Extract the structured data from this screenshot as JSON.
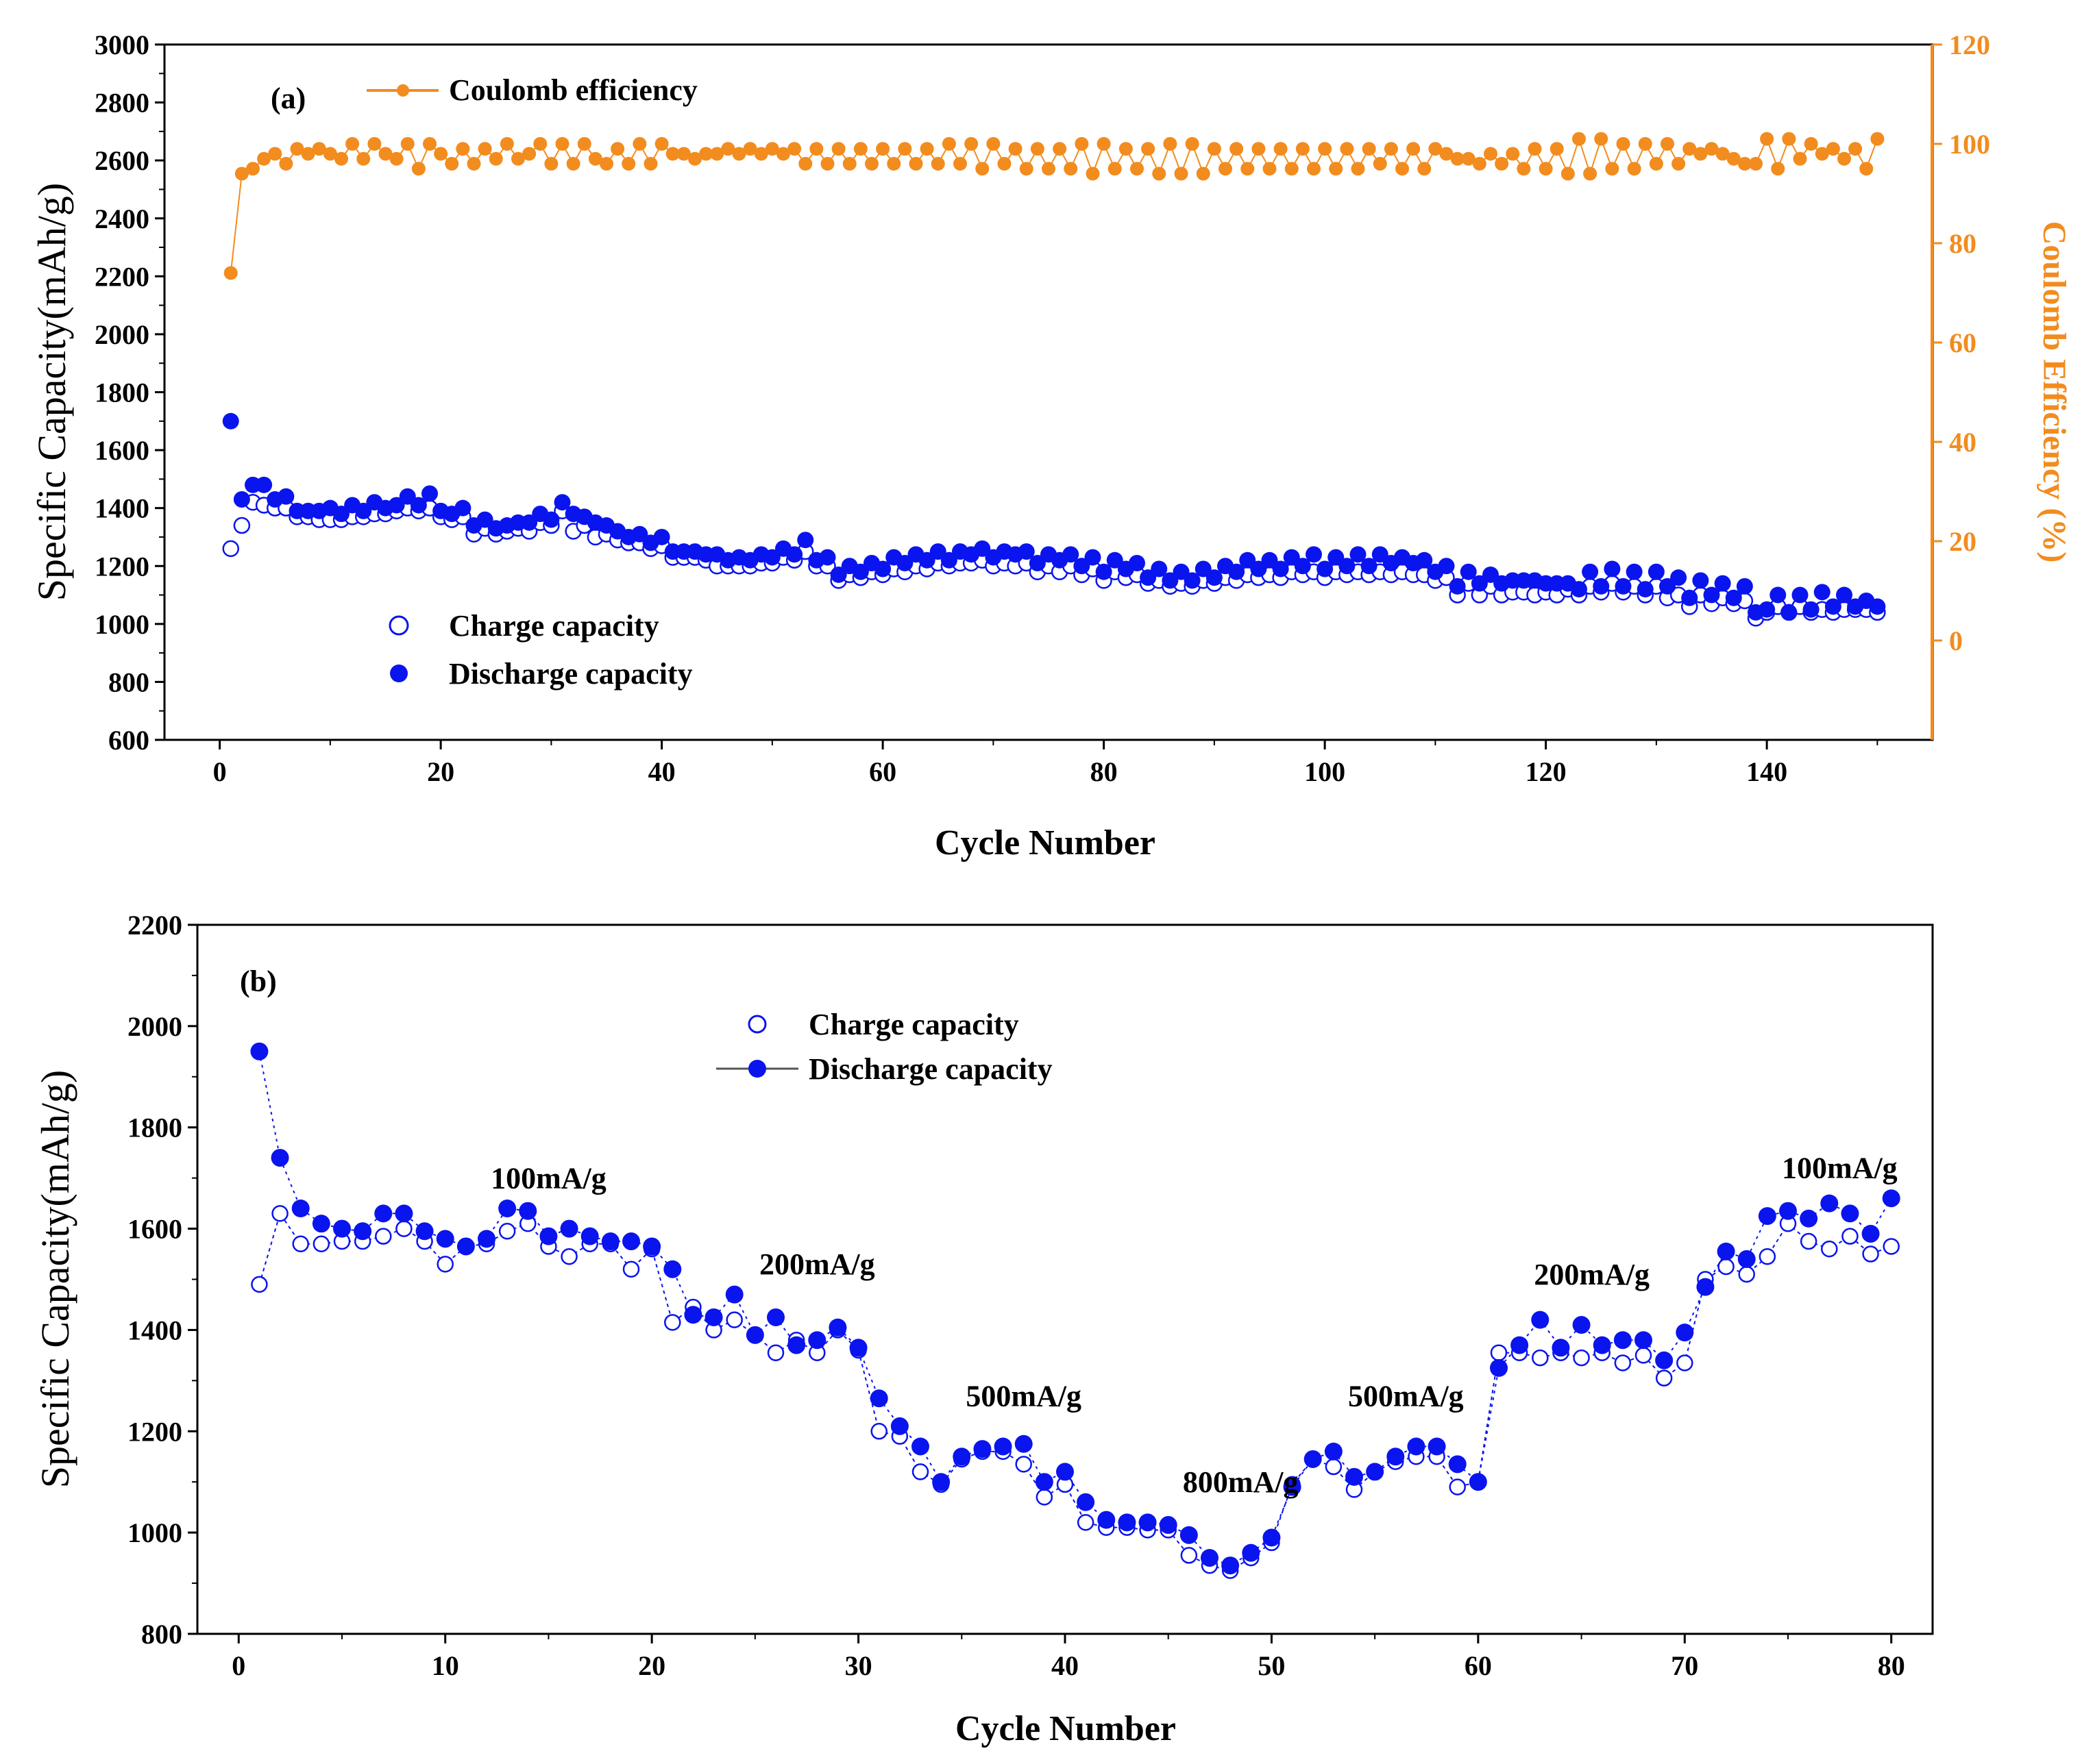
{
  "colors": {
    "capacity": "#0a14ee",
    "efficiency": "#f28c1e",
    "axis": "#000000",
    "connector": "#555555"
  },
  "chart_data": [
    {
      "type": "scatter",
      "panel_label": "(a)",
      "xlabel": "Cycle Number",
      "ylabel": "Specific Capacity(mAh/g)",
      "y2label": "Coulomb Efficiency (%)",
      "xlim": [
        -5,
        155
      ],
      "ylim": [
        600,
        3000
      ],
      "y2lim": [
        -20,
        120
      ],
      "x_ticks": [
        "0",
        "20",
        "40",
        "60",
        "80",
        "100",
        "120",
        "140"
      ],
      "y_ticks": [
        "600",
        "800",
        "1000",
        "1200",
        "1400",
        "1600",
        "1800",
        "2000",
        "2200",
        "2400",
        "2600",
        "2800",
        "3000"
      ],
      "y2_ticks": [
        "0",
        "20",
        "40",
        "60",
        "80",
        "100",
        "120"
      ],
      "legend": {
        "efficiency": "Coulomb efficiency",
        "charge": "Charge capacity",
        "discharge": "Discharge capacity"
      },
      "grid": false,
      "x": [
        1,
        2,
        3,
        4,
        5,
        6,
        7,
        8,
        9,
        10,
        11,
        12,
        13,
        14,
        15,
        16,
        17,
        18,
        19,
        20,
        21,
        22,
        23,
        24,
        25,
        26,
        27,
        28,
        29,
        30,
        31,
        32,
        33,
        34,
        35,
        36,
        37,
        38,
        39,
        40,
        41,
        42,
        43,
        44,
        45,
        46,
        47,
        48,
        49,
        50,
        51,
        52,
        53,
        54,
        55,
        56,
        57,
        58,
        59,
        60,
        61,
        62,
        63,
        64,
        65,
        66,
        67,
        68,
        69,
        70,
        71,
        72,
        73,
        74,
        75,
        76,
        77,
        78,
        79,
        80,
        81,
        82,
        83,
        84,
        85,
        86,
        87,
        88,
        89,
        90,
        91,
        92,
        93,
        94,
        95,
        96,
        97,
        98,
        99,
        100,
        101,
        102,
        103,
        104,
        105,
        106,
        107,
        108,
        109,
        110,
        111,
        112,
        113,
        114,
        115,
        116,
        117,
        118,
        119,
        120,
        121,
        122,
        123,
        124,
        125,
        126,
        127,
        128,
        129,
        130,
        131,
        132,
        133,
        134,
        135,
        136,
        137,
        138,
        139,
        140,
        141,
        142,
        143,
        144,
        145,
        146,
        147,
        148,
        149,
        150
      ],
      "series": [
        {
          "name": "Discharge capacity",
          "axis": "left",
          "marker": "filled",
          "values": [
            1700,
            1430,
            1480,
            1480,
            1430,
            1440,
            1390,
            1390,
            1390,
            1400,
            1380,
            1410,
            1390,
            1420,
            1400,
            1410,
            1440,
            1410,
            1450,
            1390,
            1380,
            1400,
            1340,
            1360,
            1330,
            1340,
            1350,
            1350,
            1380,
            1360,
            1420,
            1380,
            1370,
            1350,
            1340,
            1320,
            1300,
            1310,
            1280,
            1300,
            1250,
            1250,
            1250,
            1240,
            1240,
            1220,
            1230,
            1220,
            1240,
            1230,
            1260,
            1240,
            1290,
            1220,
            1230,
            1170,
            1200,
            1180,
            1210,
            1190,
            1230,
            1210,
            1240,
            1220,
            1250,
            1220,
            1250,
            1240,
            1260,
            1230,
            1250,
            1240,
            1250,
            1210,
            1240,
            1220,
            1240,
            1200,
            1230,
            1180,
            1220,
            1190,
            1210,
            1160,
            1190,
            1150,
            1180,
            1150,
            1190,
            1160,
            1200,
            1180,
            1220,
            1190,
            1220,
            1190,
            1230,
            1200,
            1240,
            1190,
            1230,
            1200,
            1240,
            1200,
            1240,
            1210,
            1230,
            1210,
            1220,
            1180,
            1200,
            1130,
            1180,
            1140,
            1170,
            1140,
            1150,
            1150,
            1150,
            1140,
            1140,
            1140,
            1120,
            1180,
            1130,
            1190,
            1130,
            1180,
            1120,
            1180,
            1130,
            1160,
            1090,
            1150,
            1100,
            1140,
            1090,
            1130,
            1040,
            1050,
            1100,
            1040,
            1100,
            1050,
            1110,
            1060,
            1100,
            1060,
            1080,
            1060
          ]
        },
        {
          "name": "Charge capacity",
          "axis": "left",
          "marker": "open",
          "values": [
            1260,
            1340,
            1420,
            1410,
            1400,
            1400,
            1370,
            1370,
            1360,
            1360,
            1360,
            1370,
            1370,
            1380,
            1380,
            1390,
            1400,
            1390,
            1400,
            1370,
            1360,
            1370,
            1310,
            1330,
            1310,
            1320,
            1330,
            1320,
            1350,
            1340,
            1390,
            1320,
            1340,
            1300,
            1310,
            1290,
            1280,
            1280,
            1260,
            1270,
            1230,
            1230,
            1230,
            1220,
            1200,
            1200,
            1200,
            1200,
            1210,
            1210,
            1230,
            1220,
            1250,
            1200,
            1200,
            1150,
            1170,
            1160,
            1180,
            1170,
            1190,
            1180,
            1200,
            1190,
            1210,
            1200,
            1210,
            1210,
            1220,
            1200,
            1210,
            1200,
            1210,
            1180,
            1200,
            1180,
            1200,
            1170,
            1190,
            1150,
            1180,
            1160,
            1170,
            1140,
            1150,
            1130,
            1140,
            1130,
            1150,
            1140,
            1160,
            1150,
            1170,
            1160,
            1170,
            1160,
            1180,
            1170,
            1180,
            1160,
            1180,
            1170,
            1180,
            1170,
            1180,
            1170,
            1180,
            1170,
            1170,
            1150,
            1160,
            1100,
            1140,
            1100,
            1130,
            1100,
            1110,
            1110,
            1100,
            1110,
            1100,
            1120,
            1100,
            1130,
            1110,
            1140,
            1110,
            1130,
            1100,
            1130,
            1090,
            1100,
            1060,
            1100,
            1070,
            1090,
            1070,
            1080,
            1020,
            1040,
            1060,
            1040,
            1060,
            1040,
            1050,
            1040,
            1050,
            1050,
            1050,
            1040
          ]
        },
        {
          "name": "Coulomb efficiency",
          "axis": "right",
          "marker": "filled-line",
          "values": [
            74,
            94,
            95,
            97,
            98,
            96,
            99,
            98,
            99,
            98,
            97,
            100,
            97,
            100,
            98,
            97,
            100,
            95,
            100,
            98,
            96,
            99,
            96,
            99,
            97,
            100,
            97,
            98,
            100,
            96,
            100,
            96,
            100,
            97,
            96,
            99,
            96,
            100,
            96,
            100,
            98,
            98,
            97,
            98,
            98,
            99,
            98,
            99,
            98,
            99,
            98,
            99,
            96,
            99,
            96,
            99,
            96,
            99,
            96,
            99,
            96,
            99,
            96,
            99,
            96,
            100,
            96,
            100,
            95,
            100,
            96,
            99,
            95,
            99,
            95,
            99,
            95,
            100,
            94,
            100,
            95,
            99,
            95,
            99,
            94,
            100,
            94,
            100,
            94,
            99,
            95,
            99,
            95,
            99,
            95,
            99,
            95,
            99,
            95,
            99,
            95,
            99,
            95,
            99,
            96,
            99,
            95,
            99,
            95,
            99,
            98,
            97,
            97,
            96,
            98,
            96,
            98,
            95,
            99,
            95,
            99,
            94,
            101,
            94,
            101,
            95,
            100,
            95,
            100,
            96,
            100,
            96,
            99,
            98,
            99,
            98,
            97,
            96,
            96,
            101,
            95,
            101,
            97,
            100,
            98,
            99,
            97,
            99,
            95,
            101
          ]
        }
      ]
    },
    {
      "type": "scatter",
      "panel_label": "(b)",
      "xlabel": "Cycle Number",
      "ylabel": "Specific Capacity(mAh/g)",
      "xlim": [
        -2,
        82
      ],
      "ylim": [
        800,
        2200
      ],
      "x_ticks": [
        "0",
        "10",
        "20",
        "30",
        "40",
        "50",
        "60",
        "70",
        "80"
      ],
      "y_ticks": [
        "800",
        "1000",
        "1200",
        "1400",
        "1600",
        "1800",
        "2000",
        "2200"
      ],
      "legend": {
        "charge": "Charge capacity",
        "discharge": "Discharge capacity"
      },
      "annotations": [
        {
          "text": "100mA/g",
          "x": 15,
          "y": 1680
        },
        {
          "text": "200mA/g",
          "x": 28,
          "y": 1510
        },
        {
          "text": "500mA/g",
          "x": 38,
          "y": 1250
        },
        {
          "text": "800mA/g",
          "x": 48.5,
          "y": 1080
        },
        {
          "text": "500mA/g",
          "x": 56.5,
          "y": 1250
        },
        {
          "text": "200mA/g",
          "x": 65.5,
          "y": 1490
        },
        {
          "text": "100mA/g",
          "x": 77.5,
          "y": 1700
        }
      ],
      "grid": false,
      "x": [
        1,
        2,
        3,
        4,
        5,
        6,
        7,
        8,
        9,
        10,
        11,
        12,
        13,
        14,
        15,
        16,
        17,
        18,
        19,
        20,
        21,
        22,
        23,
        24,
        25,
        26,
        27,
        28,
        29,
        30,
        31,
        32,
        33,
        34,
        35,
        36,
        37,
        38,
        39,
        40,
        41,
        42,
        43,
        44,
        45,
        46,
        47,
        48,
        49,
        50,
        51,
        52,
        53,
        54,
        55,
        56,
        57,
        58,
        59,
        60,
        61,
        62,
        63,
        64,
        65,
        66,
        67,
        68,
        69,
        70,
        71,
        72,
        73,
        74,
        75,
        76,
        77,
        78,
        79,
        80
      ],
      "series": [
        {
          "name": "Discharge capacity",
          "marker": "filled",
          "values": [
            1950,
            1740,
            1640,
            1610,
            1600,
            1595,
            1630,
            1630,
            1595,
            1580,
            1565,
            1580,
            1640,
            1635,
            1585,
            1600,
            1585,
            1575,
            1575,
            1565,
            1520,
            1430,
            1425,
            1470,
            1390,
            1425,
            1370,
            1380,
            1405,
            1365,
            1265,
            1210,
            1170,
            1100,
            1150,
            1165,
            1170,
            1175,
            1100,
            1120,
            1060,
            1025,
            1020,
            1020,
            1015,
            995,
            950,
            935,
            960,
            990,
            1090,
            1145,
            1160,
            1110,
            1120,
            1150,
            1170,
            1170,
            1135,
            1100,
            1325,
            1370,
            1420,
            1365,
            1410,
            1370,
            1380,
            1380,
            1340,
            1395,
            1485,
            1555,
            1540,
            1625,
            1635,
            1620,
            1650,
            1630,
            1590,
            1660
          ]
        },
        {
          "name": "Charge capacity",
          "marker": "open",
          "values": [
            1490,
            1630,
            1570,
            1570,
            1575,
            1575,
            1585,
            1600,
            1575,
            1530,
            1565,
            1570,
            1595,
            1610,
            1565,
            1545,
            1570,
            1570,
            1520,
            1560,
            1415,
            1445,
            1400,
            1420,
            1390,
            1355,
            1380,
            1355,
            1400,
            1360,
            1200,
            1190,
            1120,
            1095,
            1145,
            1160,
            1160,
            1135,
            1070,
            1095,
            1020,
            1010,
            1010,
            1005,
            1005,
            955,
            935,
            925,
            950,
            980,
            1095,
            1145,
            1130,
            1085,
            1120,
            1140,
            1150,
            1150,
            1090,
            1100,
            1355,
            1355,
            1345,
            1355,
            1345,
            1355,
            1335,
            1350,
            1305,
            1335,
            1500,
            1525,
            1510,
            1545,
            1610,
            1575,
            1560,
            1585,
            1550,
            1565
          ]
        }
      ]
    }
  ]
}
